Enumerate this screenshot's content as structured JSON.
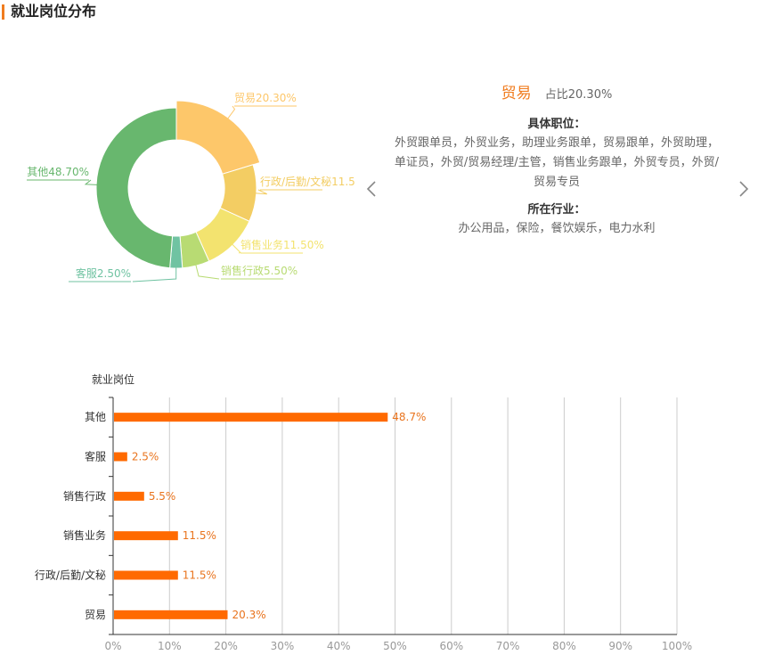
{
  "header": {
    "title": "就业岗位分布"
  },
  "detail": {
    "name": "贸易",
    "ratio": "占比20.30%",
    "positions_label": "具体职位：",
    "positions_text": "外贸跟单员，外贸业务，助理业务跟单，贸易跟单，外贸助理，单证员，外贸/贸易经理/主管，销售业务跟单，外贸专员，外贸/贸易专员",
    "industry_label": "所在行业：",
    "industry_text": "办公用品，保险，餐饮娱乐，电力水利"
  },
  "nav": {
    "prev_icon": "chevron-left-icon",
    "next_icon": "chevron-right-icon"
  },
  "chart_data": [
    {
      "type": "pie",
      "variant": "donut",
      "highlighted": "贸易",
      "slices": [
        {
          "name": "贸易",
          "value": 20.3,
          "label": "贸易20.30%",
          "color": "#fdc76a"
        },
        {
          "name": "行政/后勤/文秘",
          "value": 11.5,
          "label": "行政/后勤/文秘11.5",
          "color": "#f3cd63"
        },
        {
          "name": "销售业务",
          "value": 11.5,
          "label": "销售业务11.50%",
          "color": "#f3e36f"
        },
        {
          "name": "销售行政",
          "value": 5.5,
          "label": "销售行政5.50%",
          "color": "#b8db73"
        },
        {
          "name": "客服",
          "value": 2.5,
          "label": "客服2.50%",
          "color": "#70c3a2"
        },
        {
          "name": "其他",
          "value": 48.7,
          "label": "其他48.70%",
          "color": "#68b76e"
        }
      ]
    },
    {
      "type": "bar",
      "orientation": "horizontal",
      "ylabel": "就业岗位",
      "categories": [
        "贸易",
        "行政/后勤/文秘",
        "销售业务",
        "销售行政",
        "客服",
        "其他"
      ],
      "values": [
        20.3,
        11.5,
        11.5,
        5.5,
        2.5,
        48.7
      ],
      "value_labels": [
        "20.3%",
        "11.5%",
        "11.5%",
        "5.5%",
        "2.5%",
        "48.7%"
      ],
      "xlim": [
        0,
        100
      ],
      "x_ticks": [
        "0%",
        "10%",
        "20%",
        "30%",
        "40%",
        "50%",
        "60%",
        "70%",
        "80%",
        "90%",
        "100%"
      ],
      "bar_color": "#ff6a00",
      "grid": true
    }
  ]
}
